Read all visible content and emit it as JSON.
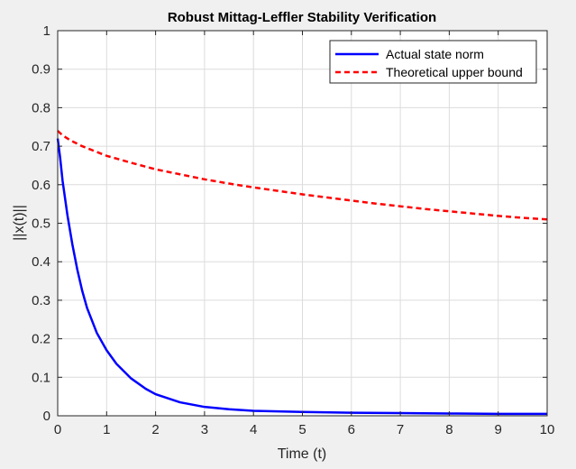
{
  "chart_data": {
    "type": "line",
    "title": "Robust Mittag-Leffler Stability Verification",
    "xlabel": "Time (t)",
    "ylabel": "||x(t)||",
    "xlim": [
      0,
      10
    ],
    "ylim": [
      0,
      1
    ],
    "xticks": [
      0,
      1,
      2,
      3,
      4,
      5,
      6,
      7,
      8,
      9,
      10
    ],
    "yticks": [
      0,
      0.1,
      0.2,
      0.3,
      0.4,
      0.5,
      0.6,
      0.7,
      0.8,
      0.9,
      1
    ],
    "grid": true,
    "legend_position": "top-right",
    "series": [
      {
        "name": "Actual state norm",
        "color": "#0000ff",
        "style": "solid",
        "x": [
          0,
          0.05,
          0.1,
          0.2,
          0.3,
          0.4,
          0.5,
          0.6,
          0.8,
          1.0,
          1.2,
          1.5,
          1.8,
          2.0,
          2.5,
          3.0,
          3.5,
          4.0,
          5.0,
          6.0,
          7.0,
          8.0,
          9.0,
          10.0
        ],
        "y": [
          0.72,
          0.67,
          0.61,
          0.52,
          0.445,
          0.38,
          0.325,
          0.28,
          0.215,
          0.17,
          0.135,
          0.097,
          0.07,
          0.056,
          0.035,
          0.023,
          0.017,
          0.013,
          0.01,
          0.008,
          0.007,
          0.006,
          0.005,
          0.005
        ]
      },
      {
        "name": "Theoretical upper bound",
        "color": "#ff0000",
        "style": "dashed",
        "x": [
          0,
          0.1,
          0.25,
          0.5,
          1,
          1.5,
          2,
          2.5,
          3,
          3.5,
          4,
          4.5,
          5,
          5.5,
          6,
          6.5,
          7,
          7.5,
          8,
          8.5,
          9,
          9.5,
          10
        ],
        "y": [
          0.74,
          0.728,
          0.716,
          0.7,
          0.675,
          0.657,
          0.64,
          0.627,
          0.614,
          0.603,
          0.593,
          0.584,
          0.575,
          0.567,
          0.559,
          0.551,
          0.544,
          0.537,
          0.531,
          0.525,
          0.519,
          0.514,
          0.51
        ]
      }
    ]
  }
}
